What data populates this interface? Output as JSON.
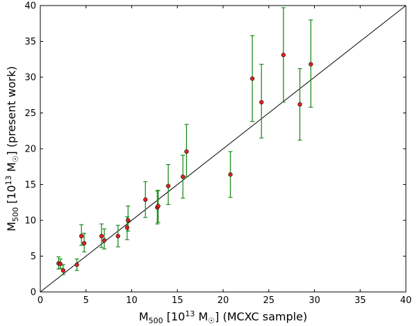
{
  "chart_data": {
    "type": "scatter",
    "title": "",
    "xlabel": "M500 [10^13 M☉] (MCXC sample)",
    "ylabel": "M500 [10^13 M☉] (present work)",
    "xlabel_parts": {
      "prefix": "M",
      "sub": "500",
      "mid": " [10",
      "sup": "13",
      "unit": " M",
      "unit_sub": "☉",
      "suffix": "]  (MCXC sample)"
    },
    "ylabel_parts": {
      "prefix": "M",
      "sub": "500",
      "mid": " [10",
      "sup": "13",
      "unit": " M",
      "unit_sub": "☉",
      "suffix": "]  (present work)"
    },
    "xlim": [
      0,
      40
    ],
    "ylim": [
      0,
      40
    ],
    "xticks": [
      0,
      5,
      10,
      15,
      20,
      25,
      30,
      35,
      40
    ],
    "yticks": [
      0,
      5,
      10,
      15,
      20,
      25,
      30,
      35,
      40
    ],
    "grid": false,
    "marker_color": "#e8201c",
    "errorbar_color": "#1e8c1e",
    "line_color": "#000000",
    "reference_line": {
      "x": [
        0,
        40
      ],
      "y": [
        0,
        40
      ]
    },
    "points": [
      {
        "x": 2.0,
        "y": 4.0,
        "yerr": [
          0.8,
          0.9
        ]
      },
      {
        "x": 2.2,
        "y": 3.9,
        "yerr": [
          0.6,
          0.7
        ]
      },
      {
        "x": 2.5,
        "y": 3.0,
        "yerr": [
          0.6,
          0.8
        ]
      },
      {
        "x": 4.0,
        "y": 3.8,
        "yerr": [
          0.8,
          0.8
        ]
      },
      {
        "x": 4.5,
        "y": 7.8,
        "yerr": [
          1.3,
          1.6
        ]
      },
      {
        "x": 4.8,
        "y": 6.8,
        "yerr": [
          1.2,
          1.4
        ]
      },
      {
        "x": 6.7,
        "y": 7.8,
        "yerr": [
          1.6,
          1.7
        ]
      },
      {
        "x": 7.0,
        "y": 7.2,
        "yerr": [
          1.2,
          1.6
        ]
      },
      {
        "x": 8.5,
        "y": 7.8,
        "yerr": [
          1.5,
          1.5
        ]
      },
      {
        "x": 9.5,
        "y": 9.0,
        "yerr": [
          1.7,
          1.5
        ]
      },
      {
        "x": 9.6,
        "y": 10.0,
        "yerr": [
          1.5,
          2.0
        ]
      },
      {
        "x": 11.5,
        "y": 12.9,
        "yerr": [
          2.5,
          2.5
        ]
      },
      {
        "x": 12.8,
        "y": 11.8,
        "yerr": [
          2.3,
          2.3
        ]
      },
      {
        "x": 12.9,
        "y": 12.0,
        "yerr": [
          2.3,
          2.2
        ]
      },
      {
        "x": 14.0,
        "y": 14.8,
        "yerr": [
          2.6,
          3.0
        ]
      },
      {
        "x": 15.6,
        "y": 16.1,
        "yerr": [
          3.0,
          3.0
        ]
      },
      {
        "x": 16.0,
        "y": 19.6,
        "yerr": [
          3.5,
          3.8
        ]
      },
      {
        "x": 20.8,
        "y": 16.4,
        "yerr": [
          3.2,
          3.2
        ]
      },
      {
        "x": 23.2,
        "y": 29.8,
        "yerr": [
          6.0,
          6.0
        ]
      },
      {
        "x": 24.2,
        "y": 26.5,
        "yerr": [
          5.0,
          5.3
        ]
      },
      {
        "x": 26.6,
        "y": 33.1,
        "yerr": [
          6.6,
          6.6
        ]
      },
      {
        "x": 28.4,
        "y": 26.2,
        "yerr": [
          5.0,
          5.0
        ]
      },
      {
        "x": 29.6,
        "y": 31.8,
        "yerr": [
          6.0,
          6.2
        ]
      }
    ]
  }
}
